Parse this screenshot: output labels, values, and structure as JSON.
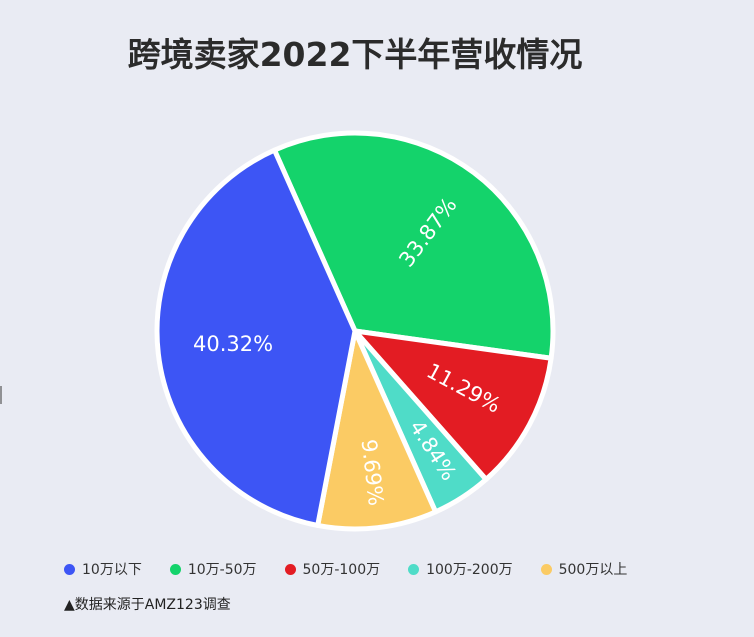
{
  "chart_data": {
    "type": "pie",
    "title": "跨境卖家2022下半年营收情况",
    "categories": [
      "10万以下",
      "10万-50万",
      "50万-100万",
      "100万-200万",
      "500万以上"
    ],
    "values": [
      40.32,
      33.87,
      11.29,
      4.84,
      9.69
    ],
    "labels": [
      "40.32%",
      "33.87%",
      "11.29%",
      "4.84%",
      "9.69%"
    ],
    "colors": [
      "#3d55f5",
      "#14d36b",
      "#e31c23",
      "#4fdcc8",
      "#fbcb64"
    ],
    "legend": "bottom"
  },
  "footer": {
    "source": "▲数据来源于AMZ123调查"
  }
}
